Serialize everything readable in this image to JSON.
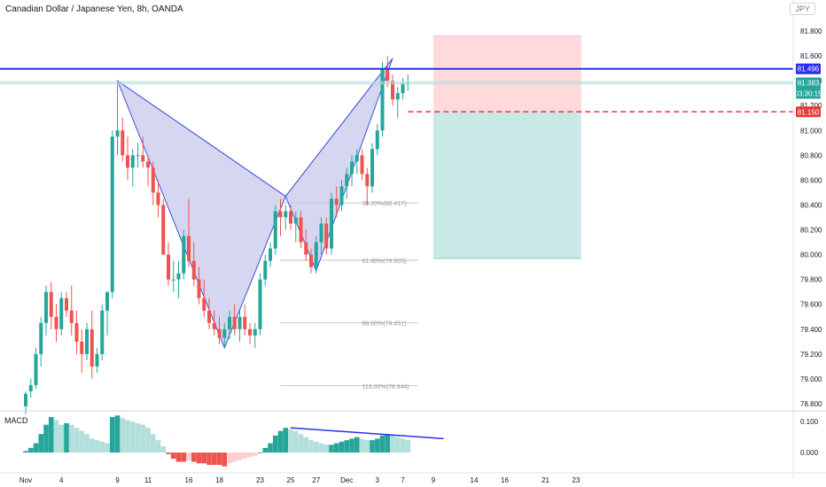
{
  "header": {
    "title": "Canadian Dollar / Japanese Yen, 8h, OANDA",
    "currency_badge": "JPY"
  },
  "indicator": {
    "label": "MACD"
  },
  "colors": {
    "up": "#26a69a",
    "down": "#ef5350",
    "hist_up_strong": "#26a69a",
    "hist_up_weak": "#b2dfdb",
    "hist_down_strong": "#ef5350",
    "hist_down_weak": "#ffcdd2",
    "resistance": "#2a2eec",
    "pattern_fill": "#c5cae9",
    "pattern_line": "#3f51e0",
    "stop": "#e53935",
    "target_zone": "#b2dfdb",
    "risk_zone": "#ffcdd2"
  },
  "chart_data": {
    "type": "candlestick",
    "title": "Canadian Dollar / Japanese Yen, 8h, OANDA",
    "ylim": [
      78.75,
      81.95
    ],
    "price_ticks": [
      "81.800",
      "81.600",
      "81.400",
      "81.200",
      "81.000",
      "80.800",
      "80.600",
      "80.400",
      "80.200",
      "80.000",
      "79.800",
      "79.600",
      "79.400",
      "79.200",
      "79.000",
      "78.800"
    ],
    "x_ticks": [
      {
        "label": "Nov",
        "i": 0
      },
      {
        "label": "4",
        "i": 7
      },
      {
        "label": "9",
        "i": 18
      },
      {
        "label": "11",
        "i": 24
      },
      {
        "label": "16",
        "i": 32
      },
      {
        "label": "18",
        "i": 38
      },
      {
        "label": "23",
        "i": 46
      },
      {
        "label": "25",
        "i": 52
      },
      {
        "label": "27",
        "i": 57
      },
      {
        "label": "Dec",
        "i": 63
      },
      {
        "label": "3",
        "i": 69
      },
      {
        "label": "7",
        "i": 74
      },
      {
        "label": "9",
        "i": 80
      },
      {
        "label": "14",
        "i": 88
      },
      {
        "label": "16",
        "i": 94
      },
      {
        "label": "21",
        "i": 102
      },
      {
        "label": "23",
        "i": 108
      }
    ],
    "candles": [
      [
        78.78,
        78.9,
        78.72,
        78.88
      ],
      [
        78.9,
        79.0,
        78.85,
        78.95
      ],
      [
        78.95,
        79.25,
        78.92,
        79.2
      ],
      [
        79.2,
        79.5,
        79.1,
        79.45
      ],
      [
        79.45,
        79.75,
        79.35,
        79.7
      ],
      [
        79.7,
        79.78,
        79.4,
        79.5
      ],
      [
        79.5,
        79.6,
        79.3,
        79.4
      ],
      [
        79.4,
        79.7,
        79.35,
        79.65
      ],
      [
        79.65,
        79.7,
        79.5,
        79.55
      ],
      [
        79.55,
        79.75,
        79.35,
        79.45
      ],
      [
        79.45,
        79.55,
        79.2,
        79.3
      ],
      [
        79.3,
        79.4,
        79.05,
        79.2
      ],
      [
        79.2,
        79.45,
        79.15,
        79.4
      ],
      [
        79.4,
        79.55,
        79.0,
        79.1
      ],
      [
        79.1,
        79.25,
        79.05,
        79.2
      ],
      [
        79.2,
        79.6,
        79.15,
        79.55
      ],
      [
        79.55,
        79.7,
        79.35,
        79.7
      ],
      [
        79.7,
        81.0,
        79.65,
        80.95
      ],
      [
        80.95,
        81.4,
        80.8,
        81.0
      ],
      [
        81.0,
        81.1,
        80.75,
        80.8
      ],
      [
        80.8,
        80.95,
        80.6,
        80.7
      ],
      [
        80.7,
        80.85,
        80.55,
        80.8
      ],
      [
        80.8,
        80.9,
        80.7,
        80.8
      ],
      [
        80.8,
        80.95,
        80.7,
        80.75
      ],
      [
        80.75,
        80.8,
        80.55,
        80.7
      ],
      [
        80.7,
        80.75,
        80.4,
        80.5
      ],
      [
        80.5,
        80.6,
        80.3,
        80.4
      ],
      [
        80.4,
        80.45,
        80.0,
        80.0
      ],
      [
        80.0,
        80.1,
        79.75,
        79.8
      ],
      [
        79.8,
        79.95,
        79.7,
        79.8
      ],
      [
        79.8,
        79.95,
        79.65,
        79.85
      ],
      [
        79.85,
        80.2,
        79.8,
        80.15
      ],
      [
        80.15,
        80.45,
        79.9,
        79.95
      ],
      [
        79.95,
        80.1,
        79.75,
        79.8
      ],
      [
        79.8,
        79.9,
        79.6,
        79.65
      ],
      [
        79.65,
        79.8,
        79.5,
        79.55
      ],
      [
        79.55,
        79.65,
        79.4,
        79.45
      ],
      [
        79.45,
        79.55,
        79.35,
        79.4
      ],
      [
        79.4,
        79.5,
        79.28,
        79.33
      ],
      [
        79.33,
        79.45,
        79.25,
        79.4
      ],
      [
        79.4,
        79.55,
        79.32,
        79.5
      ],
      [
        79.5,
        79.6,
        79.35,
        79.4
      ],
      [
        79.4,
        79.55,
        79.3,
        79.5
      ],
      [
        79.5,
        79.6,
        79.35,
        79.4
      ],
      [
        79.4,
        79.45,
        79.28,
        79.35
      ],
      [
        79.35,
        79.45,
        79.25,
        79.4
      ],
      [
        79.4,
        79.85,
        79.35,
        79.8
      ],
      [
        79.8,
        80.0,
        79.75,
        79.95
      ],
      [
        79.95,
        80.1,
        79.9,
        80.05
      ],
      [
        80.05,
        80.4,
        80.0,
        80.35
      ],
      [
        80.35,
        80.45,
        80.15,
        80.3
      ],
      [
        80.3,
        80.4,
        80.2,
        80.35
      ],
      [
        80.35,
        80.4,
        80.2,
        80.25
      ],
      [
        80.25,
        80.35,
        80.1,
        80.3
      ],
      [
        80.3,
        80.35,
        80.05,
        80.1
      ],
      [
        80.1,
        80.2,
        79.95,
        80.0
      ],
      [
        80.0,
        80.05,
        79.85,
        79.9
      ],
      [
        79.9,
        80.15,
        79.85,
        80.1
      ],
      [
        80.1,
        80.3,
        80.0,
        80.25
      ],
      [
        80.25,
        80.3,
        80.0,
        80.05
      ],
      [
        80.05,
        80.5,
        80.0,
        80.45
      ],
      [
        80.45,
        80.55,
        80.3,
        80.4
      ],
      [
        80.4,
        80.6,
        80.35,
        80.55
      ],
      [
        80.55,
        80.7,
        80.45,
        80.65
      ],
      [
        80.65,
        80.8,
        80.55,
        80.75
      ],
      [
        80.75,
        80.85,
        80.65,
        80.8
      ],
      [
        80.8,
        80.85,
        80.6,
        80.65
      ],
      [
        80.65,
        80.7,
        80.4,
        80.55
      ],
      [
        80.55,
        80.9,
        80.5,
        80.85
      ],
      [
        80.85,
        81.05,
        80.8,
        81.0
      ],
      [
        81.0,
        81.55,
        80.95,
        81.5
      ],
      [
        81.5,
        81.6,
        81.35,
        81.4
      ],
      [
        81.4,
        81.45,
        81.2,
        81.25
      ],
      [
        81.25,
        81.35,
        81.1,
        81.3
      ],
      [
        81.3,
        81.42,
        81.25,
        81.38
      ],
      [
        81.38,
        81.45,
        81.32,
        81.383
      ]
    ],
    "harmonic_pattern": {
      "X": [
        18,
        81.4
      ],
      "A": [
        39,
        79.25
      ],
      "B": [
        51,
        80.47
      ],
      "C": [
        57,
        79.87
      ],
      "D": [
        72,
        81.58
      ]
    },
    "fib_levels": [
      {
        "label": "38.20%(80.417)",
        "value": 80.417
      },
      {
        "label": "61.80%(79.955)",
        "value": 79.955
      },
      {
        "label": "88.60%(79.451)",
        "value": 79.451
      },
      {
        "label": "113.00%(78.944)",
        "value": 78.944
      }
    ],
    "resistance_level": 81.496,
    "stop_level": 81.15,
    "last_price": 81.383,
    "countdown": "03:30:15",
    "position": {
      "entry": 81.15,
      "stop_top": 81.76,
      "target_bottom": 79.97,
      "start_i": 80,
      "end_i": 109
    },
    "macd": {
      "ylim": [
        -0.06,
        0.135
      ],
      "ticks": [
        "0.100",
        "0.000"
      ],
      "histogram": [
        0.005,
        0.015,
        0.03,
        0.06,
        0.09,
        0.115,
        0.105,
        0.09,
        0.095,
        0.09,
        0.08,
        0.07,
        0.06,
        0.045,
        0.04,
        0.035,
        0.03,
        0.115,
        0.12,
        0.112,
        0.105,
        0.1,
        0.095,
        0.09,
        0.08,
        0.06,
        0.04,
        0.02,
        -0.005,
        -0.02,
        -0.03,
        -0.03,
        -0.025,
        -0.03,
        -0.035,
        -0.035,
        -0.04,
        -0.04,
        -0.04,
        -0.045,
        -0.035,
        -0.03,
        -0.025,
        -0.02,
        -0.015,
        -0.01,
        0.0,
        0.015,
        0.03,
        0.055,
        0.07,
        0.08,
        0.075,
        0.07,
        0.06,
        0.05,
        0.04,
        0.035,
        0.03,
        0.025,
        0.025,
        0.03,
        0.035,
        0.04,
        0.045,
        0.05,
        0.045,
        0.04,
        0.04,
        0.045,
        0.055,
        0.06,
        0.055,
        0.05,
        0.045,
        0.04
      ],
      "divergence_line": {
        "from": [
          52,
          0.08
        ],
        "to": [
          82,
          0.045
        ]
      }
    }
  }
}
